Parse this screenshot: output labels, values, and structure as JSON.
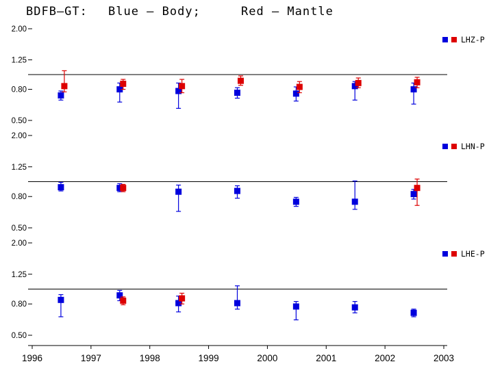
{
  "title": {
    "segments": [
      {
        "text": "BDFB–GT:",
        "color": "#000000"
      },
      {
        "text": "Blue – Body;",
        "color": "#0000dd"
      },
      {
        "text": "Red – Mantle",
        "color": "#dd0000"
      }
    ]
  },
  "chart_data": {
    "type": "scatter",
    "title": "BDFB–GT: Blue – Body; Red – Mantle",
    "xlabel": "",
    "ylabel": "",
    "yscale": "log",
    "grid": false,
    "xlim": [
      1996,
      2003
    ],
    "ylim": [
      0.5,
      2.0
    ],
    "xticks": [
      1996,
      1997,
      1998,
      1999,
      2000,
      2001,
      2002,
      2003
    ],
    "yticks": [
      {
        "value": 2.0,
        "label": "2.00"
      },
      {
        "value": 1.25,
        "label": "1.25"
      },
      {
        "value": 0.8,
        "label": "0.80"
      },
      {
        "value": 0.5,
        "label": "0.50"
      }
    ],
    "reference_line": 1.0,
    "colors": {
      "body": "#0000dd",
      "mantle": "#dd0000"
    },
    "legend_position": "top-right",
    "panels": [
      {
        "label": "LHZ-P",
        "series": [
          {
            "name": "Body",
            "color": "#0000dd",
            "points": [
              {
                "x": 1996.5,
                "y": 0.73,
                "lo": 0.68,
                "hi": 0.78
              },
              {
                "x": 1997.5,
                "y": 0.8,
                "lo": 0.66,
                "hi": 0.88
              },
              {
                "x": 1998.5,
                "y": 0.78,
                "lo": 0.6,
                "hi": 0.88
              },
              {
                "x": 1999.5,
                "y": 0.76,
                "lo": 0.7,
                "hi": 0.82
              },
              {
                "x": 2000.5,
                "y": 0.75,
                "lo": 0.67,
                "hi": 0.83
              },
              {
                "x": 2001.5,
                "y": 0.84,
                "lo": 0.68,
                "hi": 0.9
              },
              {
                "x": 2002.5,
                "y": 0.8,
                "lo": 0.64,
                "hi": 0.88
              }
            ]
          },
          {
            "name": "Mantle",
            "color": "#dd0000",
            "points": [
              {
                "x": 1996.5,
                "y": 0.84,
                "lo": 0.77,
                "hi": 1.06
              },
              {
                "x": 1997.5,
                "y": 0.87,
                "lo": 0.8,
                "hi": 0.93
              },
              {
                "x": 1998.5,
                "y": 0.84,
                "lo": 0.76,
                "hi": 0.93
              },
              {
                "x": 1999.5,
                "y": 0.91,
                "lo": 0.85,
                "hi": 0.98
              },
              {
                "x": 2000.5,
                "y": 0.83,
                "lo": 0.76,
                "hi": 0.9
              },
              {
                "x": 2001.5,
                "y": 0.88,
                "lo": 0.82,
                "hi": 0.95
              },
              {
                "x": 2002.5,
                "y": 0.89,
                "lo": 0.82,
                "hi": 0.96
              }
            ]
          }
        ]
      },
      {
        "label": "LHN-P",
        "series": [
          {
            "name": "Body",
            "color": "#0000dd",
            "points": [
              {
                "x": 1996.5,
                "y": 0.92,
                "lo": 0.87,
                "hi": 0.99
              },
              {
                "x": 1997.5,
                "y": 0.91,
                "lo": 0.86,
                "hi": 0.97
              },
              {
                "x": 1998.5,
                "y": 0.86,
                "lo": 0.64,
                "hi": 0.95
              },
              {
                "x": 1999.5,
                "y": 0.87,
                "lo": 0.78,
                "hi": 0.94
              },
              {
                "x": 2000.5,
                "y": 0.74,
                "lo": 0.69,
                "hi": 0.79
              },
              {
                "x": 2001.5,
                "y": 0.74,
                "lo": 0.66,
                "hi": 1.01
              },
              {
                "x": 2002.5,
                "y": 0.83,
                "lo": 0.77,
                "hi": 0.89
              }
            ]
          },
          {
            "name": "Mantle",
            "color": "#dd0000",
            "points": [
              {
                "x": 1997.5,
                "y": 0.91,
                "lo": 0.86,
                "hi": 0.96
              },
              {
                "x": 2002.5,
                "y": 0.91,
                "lo": 0.7,
                "hi": 1.04
              }
            ]
          }
        ]
      },
      {
        "label": "LHE-P",
        "series": [
          {
            "name": "Body",
            "color": "#0000dd",
            "points": [
              {
                "x": 1996.5,
                "y": 0.85,
                "lo": 0.66,
                "hi": 0.92
              },
              {
                "x": 1997.5,
                "y": 0.91,
                "lo": 0.84,
                "hi": 0.98
              },
              {
                "x": 1998.5,
                "y": 0.81,
                "lo": 0.71,
                "hi": 0.9
              },
              {
                "x": 1999.5,
                "y": 0.81,
                "lo": 0.74,
                "hi": 1.05
              },
              {
                "x": 2000.5,
                "y": 0.77,
                "lo": 0.63,
                "hi": 0.83
              },
              {
                "x": 2001.5,
                "y": 0.76,
                "lo": 0.7,
                "hi": 0.83
              },
              {
                "x": 2002.5,
                "y": 0.7,
                "lo": 0.66,
                "hi": 0.74
              }
            ]
          },
          {
            "name": "Mantle",
            "color": "#dd0000",
            "points": [
              {
                "x": 1997.5,
                "y": 0.84,
                "lo": 0.79,
                "hi": 0.89
              },
              {
                "x": 1998.5,
                "y": 0.87,
                "lo": 0.8,
                "hi": 0.94
              }
            ]
          }
        ]
      }
    ]
  }
}
